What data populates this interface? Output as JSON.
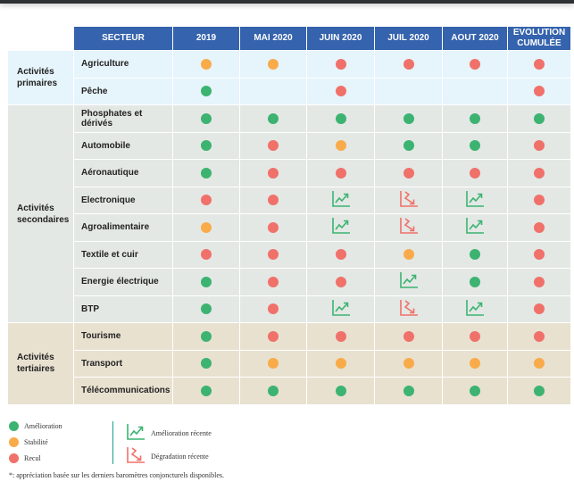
{
  "colors": {
    "header": "#3563ad",
    "amelioration": "#3cb371",
    "stabilite": "#f9ab4a",
    "recul": "#f0716a"
  },
  "columns": [
    "SECTEUR",
    "2019",
    "MAI 2020",
    "JUIN 2020",
    "JUIL 2020",
    "AOUT 2020",
    "EVOLUTION CUMULÉE"
  ],
  "groups": [
    {
      "key": "primaires",
      "label": "Activités primaires",
      "rows": [
        {
          "sector": "Agriculture",
          "values": [
            "O",
            "O",
            "R",
            "R",
            "R",
            "R"
          ]
        },
        {
          "sector": "Pêche",
          "values": [
            "G",
            "",
            "R",
            "",
            "",
            "R"
          ]
        }
      ]
    },
    {
      "key": "secondaires",
      "label": "Activités secondaires",
      "rows": [
        {
          "sector": "Phosphates et dérivés",
          "values": [
            "G",
            "G",
            "G",
            "G",
            "G",
            "G"
          ]
        },
        {
          "sector": "Automobile",
          "values": [
            "G",
            "R",
            "O",
            "G",
            "G",
            "R"
          ]
        },
        {
          "sector": "Aéronautique",
          "values": [
            "G",
            "R",
            "R",
            "R",
            "R",
            "R"
          ]
        },
        {
          "sector": "Electronique",
          "values": [
            "R",
            "R",
            "U",
            "D",
            "U",
            "R"
          ]
        },
        {
          "sector": "Agroalimentaire",
          "values": [
            "O",
            "R",
            "U",
            "D",
            "U",
            "R"
          ]
        },
        {
          "sector": "Textile et cuir",
          "values": [
            "R",
            "R",
            "R",
            "O",
            "G",
            "R"
          ]
        },
        {
          "sector": "Energie électrique",
          "values": [
            "G",
            "R",
            "R",
            "U",
            "G",
            "R"
          ]
        },
        {
          "sector": "BTP",
          "values": [
            "G",
            "R",
            "U",
            "D",
            "U",
            "R"
          ]
        }
      ]
    },
    {
      "key": "tertiaires",
      "label": "Activités tertiaires",
      "rows": [
        {
          "sector": "Tourisme",
          "values": [
            "G",
            "R",
            "R",
            "R",
            "R",
            "R"
          ]
        },
        {
          "sector": "Transport",
          "values": [
            "G",
            "O",
            "O",
            "O",
            "O",
            "O"
          ]
        },
        {
          "sector": "Télécommunications",
          "values": [
            "G",
            "G",
            "G",
            "G",
            "G",
            "G"
          ]
        }
      ]
    }
  ],
  "legend": {
    "amelioration": "Amélioration",
    "stabilite": "Stabilité",
    "recul": "Recul",
    "amelioration_recente": "Amélioration récente",
    "degradation_recente": "Dégradation récente",
    "note": "*: appréciation basée sur les derniers baromètres conjoncturels disponibles."
  }
}
